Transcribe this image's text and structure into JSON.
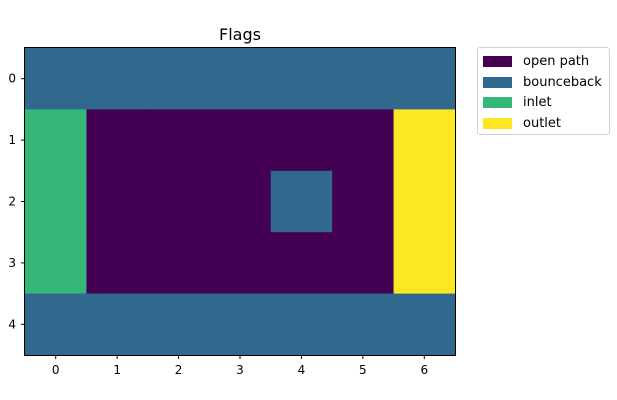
{
  "chart_data": {
    "type": "heatmap",
    "title": "Flags",
    "xlabel": "",
    "ylabel": "",
    "x_ticks": [
      "0",
      "1",
      "2",
      "3",
      "4",
      "5",
      "6"
    ],
    "y_ticks": [
      "0",
      "1",
      "2",
      "3",
      "4"
    ],
    "grid": false,
    "legend_position": "outside top-right",
    "categories": [
      {
        "id": 0,
        "label": "open path",
        "color": "#440154"
      },
      {
        "id": 1,
        "label": "bounceback",
        "color": "#30688e"
      },
      {
        "id": 2,
        "label": "inlet",
        "color": "#35b779"
      },
      {
        "id": 3,
        "label": "outlet",
        "color": "#fde725"
      }
    ],
    "matrix": [
      [
        1,
        1,
        1,
        1,
        1,
        1,
        1
      ],
      [
        2,
        0,
        0,
        0,
        0,
        0,
        3
      ],
      [
        2,
        0,
        0,
        0,
        1,
        0,
        3
      ],
      [
        2,
        0,
        0,
        0,
        0,
        0,
        3
      ],
      [
        1,
        1,
        1,
        1,
        1,
        1,
        1
      ]
    ]
  }
}
